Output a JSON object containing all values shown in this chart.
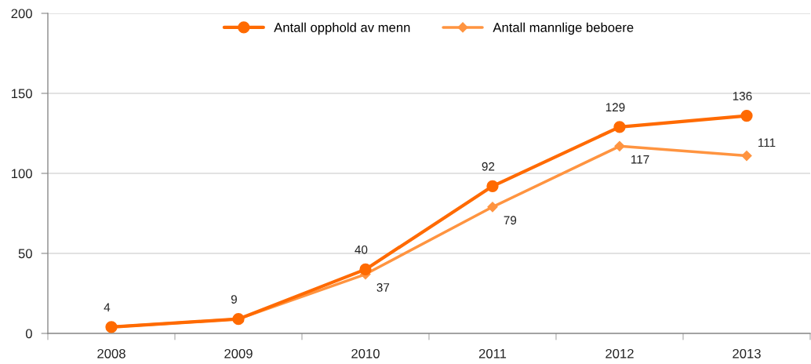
{
  "chart_data": {
    "type": "line",
    "categories": [
      "2008",
      "2009",
      "2010",
      "2011",
      "2012",
      "2013"
    ],
    "series": [
      {
        "name": "Antall opphold av menn",
        "color": "#ff6a00",
        "marker": "circle",
        "values": [
          4,
          9,
          40,
          92,
          129,
          136
        ],
        "value_labels": [
          "4",
          "9",
          "40",
          "92",
          "129",
          "136"
        ]
      },
      {
        "name": "Antall mannlige beboere",
        "color": "#ff9440",
        "marker": "diamond",
        "values": [
          4,
          9,
          37,
          79,
          117,
          111
        ],
        "value_labels": [
          null,
          null,
          "37",
          "79",
          "117",
          "111"
        ]
      }
    ],
    "ylim": [
      0,
      200
    ],
    "yticks": [
      0,
      50,
      100,
      150,
      200
    ],
    "grid": "y",
    "legend": "top"
  }
}
